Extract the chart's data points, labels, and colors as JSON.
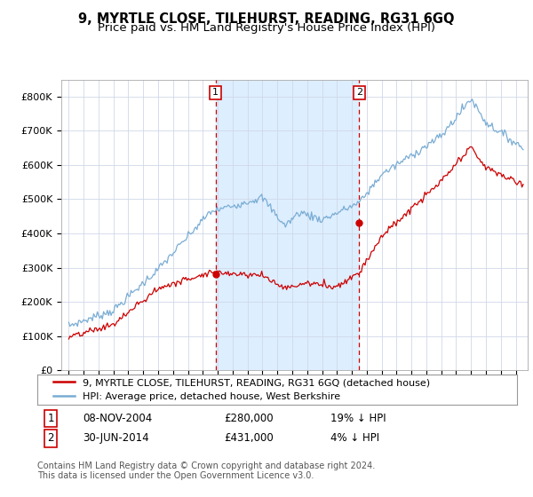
{
  "title": "9, MYRTLE CLOSE, TILEHURST, READING, RG31 6GQ",
  "subtitle": "Price paid vs. HM Land Registry's House Price Index (HPI)",
  "ylim": [
    0,
    850000
  ],
  "yticks": [
    0,
    100000,
    200000,
    300000,
    400000,
    500000,
    600000,
    700000,
    800000
  ],
  "ytick_labels": [
    "£0",
    "£100K",
    "£200K",
    "£300K",
    "£400K",
    "£500K",
    "£600K",
    "£700K",
    "£800K"
  ],
  "sale1_date_num": 2004.85,
  "sale1_price": 280000,
  "sale1_label": "1",
  "sale2_date_num": 2014.5,
  "sale2_price": 431000,
  "sale2_label": "2",
  "line_color_hpi": "#7aadd4",
  "line_color_price": "#cc0000",
  "shade_color": "#ddeeff",
  "background_color": "#ffffff",
  "grid_color": "#d0d8e8",
  "legend_label_price": "9, MYRTLE CLOSE, TILEHURST, READING, RG31 6GQ (detached house)",
  "legend_label_hpi": "HPI: Average price, detached house, West Berkshire",
  "table_row1": [
    "1",
    "08-NOV-2004",
    "£280,000",
    "19% ↓ HPI"
  ],
  "table_row2": [
    "2",
    "30-JUN-2014",
    "£431,000",
    "4% ↓ HPI"
  ],
  "footer": "Contains HM Land Registry data © Crown copyright and database right 2024.\nThis data is licensed under the Open Government Licence v3.0.",
  "title_fontsize": 10.5,
  "subtitle_fontsize": 9.5,
  "tick_fontsize": 8,
  "legend_fontsize": 8,
  "table_fontsize": 8.5,
  "footer_fontsize": 7
}
